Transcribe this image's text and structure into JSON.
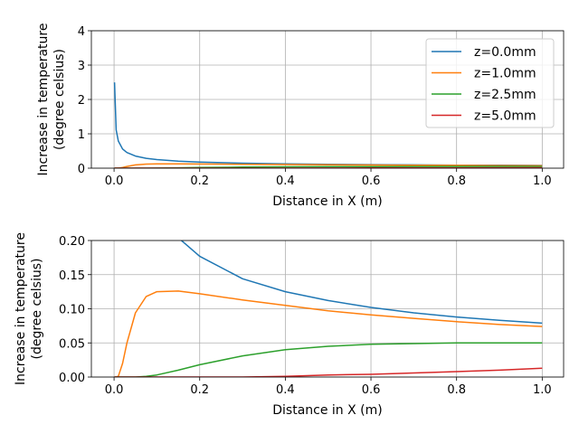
{
  "chart_data": [
    {
      "type": "line",
      "xlabel": "Distance in X (m)",
      "ylabel": [
        "Increase in temperature",
        "(degree celsius)"
      ],
      "xlim": [
        -0.053,
        1.05
      ],
      "ylim": [
        0,
        4
      ],
      "xticks": [
        0.0,
        0.2,
        0.4,
        0.6,
        0.8,
        1.0
      ],
      "xtick_labels": [
        "0.0",
        "0.2",
        "0.4",
        "0.6",
        "0.8",
        "1.0"
      ],
      "yticks": [
        0,
        1,
        2,
        3,
        4
      ],
      "ytick_labels": [
        "0",
        "1",
        "2",
        "3",
        "4"
      ],
      "grid": true,
      "legend": "top-right",
      "series_ref": "shared"
    },
    {
      "type": "line",
      "xlabel": "Distance in X (m)",
      "ylabel": [
        "Increase in temperature",
        "(degree celsius)"
      ],
      "xlim": [
        -0.053,
        1.05
      ],
      "ylim": [
        0,
        0.2
      ],
      "xticks": [
        0.0,
        0.2,
        0.4,
        0.6,
        0.8,
        1.0
      ],
      "xtick_labels": [
        "0.0",
        "0.2",
        "0.4",
        "0.6",
        "0.8",
        "1.0"
      ],
      "yticks": [
        0,
        0.05,
        0.1,
        0.15,
        0.2
      ],
      "ytick_labels": [
        "0.00",
        "0.05",
        "0.10",
        "0.15",
        "0.20"
      ],
      "grid": true,
      "series_ref": "shared"
    }
  ],
  "shared": {
    "x": [
      0.001,
      0.005,
      0.01,
      0.02,
      0.03,
      0.05,
      0.075,
      0.1,
      0.15,
      0.2,
      0.3,
      0.4,
      0.5,
      0.6,
      0.7,
      0.8,
      0.9,
      1.0
    ],
    "series": [
      {
        "name": "z=0.0mm",
        "color": "#1f77b4",
        "values": [
          2.498,
          1.117,
          0.79,
          0.559,
          0.456,
          0.353,
          0.288,
          0.25,
          0.204,
          0.177,
          0.144,
          0.125,
          0.112,
          0.102,
          0.094,
          0.088,
          0.083,
          0.079
        ]
      },
      {
        "name": "z=1.0mm",
        "color": "#ff7f0e",
        "values": [
          0,
          0,
          0.001,
          0.02,
          0.05,
          0.094,
          0.118,
          0.125,
          0.126,
          0.122,
          0.113,
          0.105,
          0.097,
          0.091,
          0.086,
          0.081,
          0.077,
          0.074
        ]
      },
      {
        "name": "z=2.5mm",
        "color": "#2ca02c",
        "values": [
          0,
          0,
          0,
          0,
          0,
          0,
          0.001,
          0.003,
          0.01,
          0.018,
          0.031,
          0.04,
          0.045,
          0.048,
          0.049,
          0.05,
          0.05,
          0.05
        ]
      },
      {
        "name": "z=5.0mm",
        "color": "#d62728",
        "values": [
          0,
          0,
          0,
          0,
          0,
          0,
          0,
          0,
          0,
          0,
          0,
          0.001,
          0.003,
          0.004,
          0.006,
          0.008,
          0.01,
          0.013
        ]
      }
    ]
  }
}
